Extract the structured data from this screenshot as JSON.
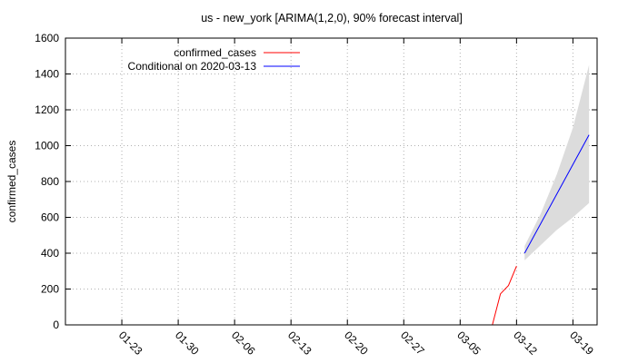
{
  "chart_data": {
    "type": "line",
    "title": "us - new_york [ARIMA(1,2,0), 90% forecast interval]",
    "xlabel": "",
    "ylabel": "confirmed_cases",
    "ylim": [
      0,
      1600
    ],
    "y_ticks": [
      0,
      200,
      400,
      600,
      800,
      1000,
      1200,
      1400,
      1600
    ],
    "xlim": [
      "2020-01-16",
      "2020-03-22"
    ],
    "x_tick_dates": [
      "2020-01-23",
      "2020-01-30",
      "2020-02-06",
      "2020-02-13",
      "2020-02-20",
      "2020-02-27",
      "2020-03-05",
      "2020-03-12",
      "2020-03-19"
    ],
    "x_tick_labels": [
      "01-23",
      "01-30",
      "02-06",
      "02-13",
      "02-20",
      "02-27",
      "03-05",
      "03-12",
      "03-19"
    ],
    "grid": true,
    "legend_position": "top-left",
    "series": [
      {
        "name": "confirmed_cases",
        "color": "#ff0000",
        "points": [
          {
            "x": "2020-03-09",
            "y": 0
          },
          {
            "x": "2020-03-10",
            "y": 173
          },
          {
            "x": "2020-03-11",
            "y": 220
          },
          {
            "x": "2020-03-12",
            "y": 328
          }
        ]
      },
      {
        "name": "Conditional on 2020-03-13",
        "color": "#0000ff",
        "points": [
          {
            "x": "2020-03-13",
            "y": 400
          },
          {
            "x": "2020-03-21",
            "y": 1060
          }
        ]
      }
    ],
    "interval": {
      "color": "#dcdcdc",
      "points": [
        {
          "x": "2020-03-13",
          "low": 360,
          "high": 440
        },
        {
          "x": "2020-03-15",
          "low": 445,
          "high": 620
        },
        {
          "x": "2020-03-17",
          "low": 530,
          "high": 840
        },
        {
          "x": "2020-03-19",
          "low": 600,
          "high": 1100
        },
        {
          "x": "2020-03-21",
          "low": 680,
          "high": 1450
        }
      ]
    }
  }
}
